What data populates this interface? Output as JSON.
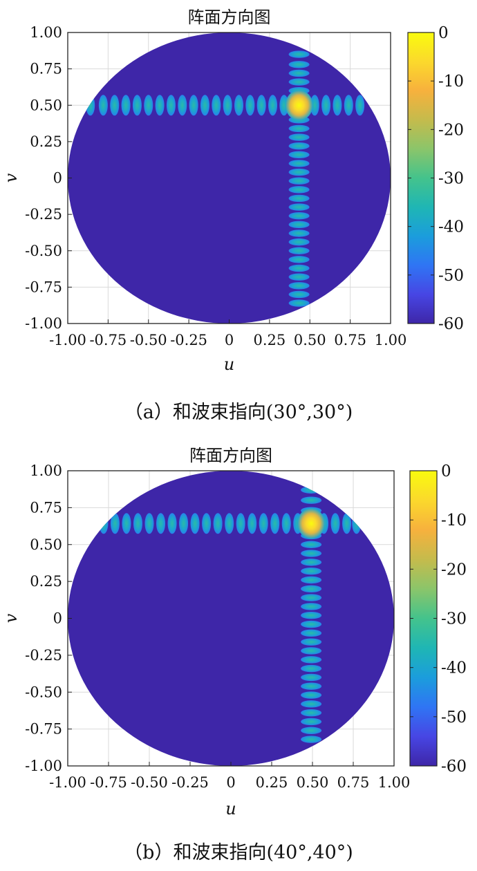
{
  "colors": {
    "background_level": "#3e2b8c",
    "axis": "#222222",
    "grid": "#d9d9d9",
    "colormap": [
      "#3e26a8",
      "#4746e4",
      "#2f75f4",
      "#1b9ddc",
      "#1fb6b4",
      "#44c38c",
      "#8bc56a",
      "#c5bb4c",
      "#f7b13d",
      "#fbd92c",
      "#f9fb0e"
    ]
  },
  "chart_data": [
    {
      "type": "heatmap",
      "title": "阵面方向图",
      "xlabel": "u",
      "ylabel": "v",
      "xlim": [
        -1,
        1
      ],
      "ylim": [
        -1,
        1
      ],
      "xticks": [
        -1.0,
        -0.75,
        -0.5,
        -0.25,
        0,
        0.25,
        0.5,
        0.75,
        1.0
      ],
      "xtick_labels": [
        "-1.00",
        "-0.75",
        "-0.50",
        "-0.25",
        "0",
        "0.25",
        "0.50",
        "0.75",
        "1.00"
      ],
      "yticks": [
        1.0,
        0.75,
        0.5,
        0.25,
        0,
        -0.25,
        -0.5,
        -0.75,
        -1.0
      ],
      "ytick_labels": [
        "1.00",
        "0.75",
        "0.50",
        "0.25",
        "0",
        "-0.25",
        "-0.50",
        "-0.75",
        "-1.00"
      ],
      "grid": true,
      "colorbar": {
        "range": [
          -60,
          0
        ],
        "ticks": [
          0,
          -10,
          -20,
          -30,
          -40,
          -50,
          -60
        ],
        "tick_labels": [
          "0",
          "-10",
          "-20",
          "-30",
          "-40",
          "-50",
          "-60"
        ]
      },
      "background_level": -60,
      "main_beam": {
        "u": 0.433,
        "v": 0.5,
        "level": 0
      },
      "horizontal_sidelobes": {
        "v": 0.5,
        "u": [
          -0.86,
          -0.78,
          -0.71,
          -0.64,
          -0.57,
          -0.5,
          -0.43,
          -0.36,
          -0.29,
          -0.22,
          -0.15,
          -0.08,
          -0.01,
          0.06,
          0.13,
          0.2,
          0.27,
          0.34,
          0.53,
          0.6,
          0.67,
          0.74,
          0.81
        ],
        "level": -40
      },
      "vertical_sidelobes": {
        "u": 0.433,
        "v": [
          0.85,
          0.78,
          0.72,
          0.66,
          0.6,
          0.4,
          0.34,
          0.28,
          0.22,
          0.16,
          0.1,
          0.04,
          -0.02,
          -0.08,
          -0.14,
          -0.2,
          -0.26,
          -0.32,
          -0.38,
          -0.44,
          -0.5,
          -0.56,
          -0.62,
          -0.68,
          -0.74,
          -0.8,
          -0.86
        ],
        "level": -40
      },
      "caption": "（a）和波束指向(30°,30°)"
    },
    {
      "type": "heatmap",
      "title": "阵面方向图",
      "xlabel": "u",
      "ylabel": "v",
      "xlim": [
        -1,
        1
      ],
      "ylim": [
        -1,
        1
      ],
      "xticks": [
        -1.0,
        -0.75,
        -0.5,
        -0.25,
        0,
        0.25,
        0.5,
        0.75,
        1.0
      ],
      "xtick_labels": [
        "-1.00",
        "-0.75",
        "-0.50",
        "-0.25",
        "0",
        "0.25",
        "0.50",
        "0.75",
        "1.00"
      ],
      "yticks": [
        1.0,
        0.75,
        0.5,
        0.25,
        0,
        -0.25,
        -0.5,
        -0.75,
        -1.0
      ],
      "ytick_labels": [
        "1.00",
        "0.75",
        "0.50",
        "0.25",
        "0",
        "-0.25",
        "-0.50",
        "-0.75",
        "-1.00"
      ],
      "grid": true,
      "colorbar": {
        "range": [
          -60,
          0
        ],
        "ticks": [
          0,
          -10,
          -20,
          -30,
          -40,
          -50,
          -60
        ],
        "tick_labels": [
          "0",
          "-10",
          "-20",
          "-30",
          "-40",
          "-50",
          "-60"
        ]
      },
      "background_level": -60,
      "main_beam": {
        "u": 0.492,
        "v": 0.643,
        "level": 0
      },
      "horizontal_sidelobes": {
        "v": 0.643,
        "u": [
          -0.78,
          -0.71,
          -0.64,
          -0.57,
          -0.5,
          -0.43,
          -0.36,
          -0.29,
          -0.22,
          -0.15,
          -0.08,
          -0.01,
          0.06,
          0.13,
          0.2,
          0.27,
          0.34,
          0.41,
          0.57,
          0.64,
          0.71,
          0.77
        ],
        "level": -40
      },
      "vertical_sidelobes": {
        "u": 0.492,
        "v": [
          0.87,
          0.8,
          0.73,
          0.56,
          0.5,
          0.44,
          0.38,
          0.32,
          0.26,
          0.2,
          0.14,
          0.08,
          0.02,
          -0.04,
          -0.1,
          -0.16,
          -0.22,
          -0.28,
          -0.34,
          -0.4,
          -0.46,
          -0.52,
          -0.58,
          -0.64,
          -0.7,
          -0.76,
          -0.82
        ],
        "level": -40
      },
      "caption": "（b）和波束指向(40°,40°)"
    }
  ]
}
